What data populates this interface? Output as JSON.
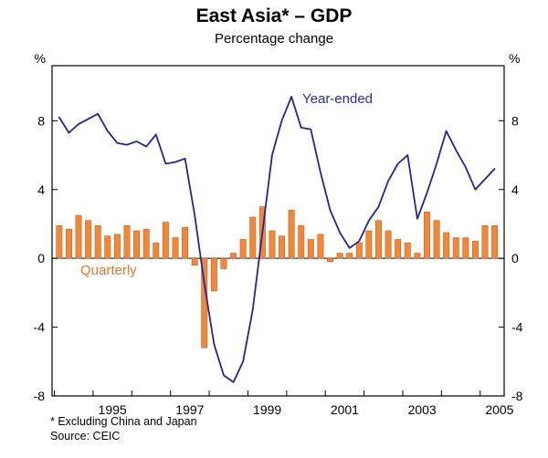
{
  "chart_data": {
    "type": "combo",
    "title": "East Asia* – GDP",
    "subtitle": "Percentage change",
    "unit_left": "%",
    "unit_right": "%",
    "ylim": [
      -8,
      11.2
    ],
    "y_ticks": [
      8,
      4,
      0,
      -4,
      -8
    ],
    "x_tick_years": [
      "1995",
      "1997",
      "1999",
      "2001",
      "2003",
      "2005"
    ],
    "x_start_year": 1994,
    "x_start_quarter": 1,
    "x_end": "2005Q2",
    "grid": "zero line only, closed plot frame, ticks on both y axes",
    "legend": "inline text annotations",
    "series": [
      {
        "name": "Year-ended",
        "type": "line",
        "color": "#23239B",
        "values": [
          8.2,
          7.3,
          7.8,
          8.1,
          8.4,
          7.4,
          6.7,
          6.6,
          6.8,
          6.5,
          7.2,
          5.5,
          5.6,
          5.8,
          2.5,
          -1.5,
          -5.0,
          -6.8,
          -7.2,
          -6.0,
          -3.0,
          1.5,
          6.0,
          8.0,
          9.4,
          7.6,
          7.5,
          5.0,
          2.8,
          1.5,
          0.6,
          1.0,
          2.2,
          3.0,
          4.5,
          5.5,
          6.0,
          2.3,
          3.8,
          5.5,
          7.4,
          6.3,
          5.3,
          4.0,
          4.6,
          5.2
        ]
      },
      {
        "name": "Quarterly",
        "type": "bar",
        "color": "#F0873B",
        "values": [
          1.9,
          1.7,
          2.5,
          2.2,
          1.9,
          1.3,
          1.4,
          1.9,
          1.6,
          1.7,
          0.9,
          2.1,
          1.2,
          1.8,
          -0.4,
          -5.2,
          -1.9,
          -0.6,
          0.3,
          1.1,
          2.4,
          3.0,
          1.6,
          1.3,
          2.8,
          1.9,
          1.1,
          1.4,
          -0.2,
          0.3,
          0.3,
          0.9,
          1.6,
          2.2,
          1.6,
          1.1,
          0.9,
          0.3,
          2.7,
          2.2,
          1.5,
          1.2,
          1.2,
          1.0,
          1.9,
          1.9
        ]
      }
    ],
    "footnote": "*  Excluding China and Japan",
    "source": "Source: CEIC"
  }
}
